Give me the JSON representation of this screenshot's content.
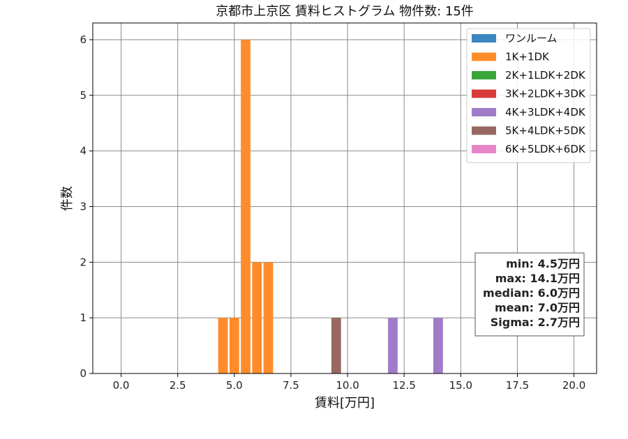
{
  "chart_data": {
    "type": "bar",
    "title": "京都市上京区 賃料ヒストグラム  物件数: 15件",
    "xlabel": "賃料[万円]",
    "ylabel": "件数",
    "xlim": [
      -1.25,
      21.0
    ],
    "ylim": [
      0,
      6.3
    ],
    "xticks": [
      0.0,
      2.5,
      5.0,
      7.5,
      10.0,
      12.5,
      15.0,
      17.5,
      20.0
    ],
    "xtick_labels": [
      "0.0",
      "2.5",
      "5.0",
      "7.5",
      "10.0",
      "12.5",
      "15.0",
      "17.5",
      "20.0"
    ],
    "yticks": [
      0,
      1,
      2,
      3,
      4,
      5,
      6
    ],
    "ytick_labels": [
      "0",
      "1",
      "2",
      "3",
      "4",
      "5",
      "6"
    ],
    "grid": true,
    "legend_position": "top-right",
    "bin_width": 0.5,
    "series": [
      {
        "name": "ワンルーム",
        "color": "#3a86c0",
        "bars": []
      },
      {
        "name": "1K+1DK",
        "color": "#ff8c2a",
        "bars": [
          {
            "x": 4.5,
            "count": 1
          },
          {
            "x": 5.0,
            "count": 1
          },
          {
            "x": 5.5,
            "count": 6
          },
          {
            "x": 6.0,
            "count": 2
          },
          {
            "x": 6.5,
            "count": 2
          }
        ]
      },
      {
        "name": "2K+1LDK+2DK",
        "color": "#3aa63a",
        "bars": []
      },
      {
        "name": "3K+2LDK+3DK",
        "color": "#d83a3a",
        "bars": []
      },
      {
        "name": "4K+3LDK+4DK",
        "color": "#a07cc8",
        "bars": [
          {
            "x": 12.0,
            "count": 1
          },
          {
            "x": 14.0,
            "count": 1
          }
        ]
      },
      {
        "name": "5K+4LDK+5DK",
        "color": "#966860",
        "bars": [
          {
            "x": 9.5,
            "count": 1
          }
        ]
      },
      {
        "name": "6K+5LDK+6DK",
        "color": "#e885c8",
        "bars": []
      }
    ],
    "stats": [
      "min: 4.5万円",
      "max: 14.1万円",
      "median: 6.0万円",
      "mean: 7.0万円",
      "Sigma: 2.7万円"
    ]
  }
}
